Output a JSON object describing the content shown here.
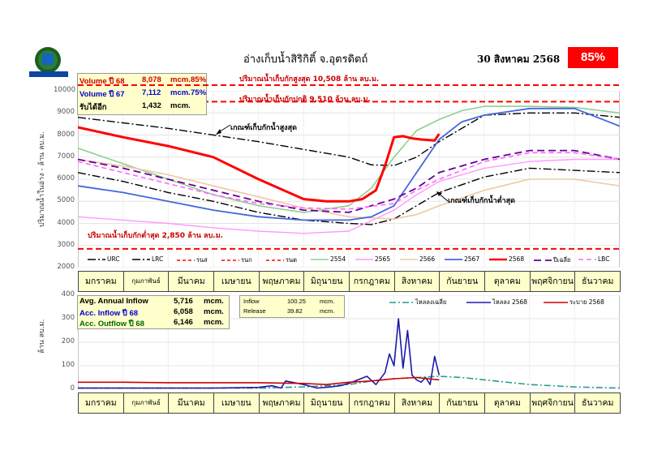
{
  "header": {
    "title": "อ่างเก็บน้ำสิริกิติ์ จ.อุตรดิตถ์",
    "date": "30 สิงหาคม 2568",
    "percent": "85%",
    "logo_text": "กรมชลประทาน"
  },
  "colors": {
    "accent_red": "#ff0000",
    "info_bg": "#ffffcc",
    "plot_bg": "#ffffff"
  },
  "info_top": {
    "rows": [
      {
        "label": "Volume ปี 68",
        "value": "8,078",
        "unit": "mcm.",
        "pct": "85%",
        "color": "#cc0000"
      },
      {
        "label": "Volume ปี 67",
        "value": "7,112",
        "unit": "mcm.",
        "pct": "75%",
        "color": "#0000cc"
      },
      {
        "label": "รับได้อีก",
        "value": "1,432",
        "unit": "mcm.",
        "pct": "",
        "color": "#000000"
      }
    ]
  },
  "info_bottom": {
    "rows": [
      {
        "label": "Avg. Annual Inflow",
        "value": "5,716",
        "unit": "mcm.",
        "color": "#000000"
      },
      {
        "label": "Acc. Inflow  ปี 68",
        "value": "6,058",
        "unit": "mcm.",
        "color": "#0000cc"
      },
      {
        "label": "Acc. Outflow  ปี 68",
        "value": "6,146",
        "unit": "mcm.",
        "color": "#006600"
      }
    ]
  },
  "info_flow": {
    "inflow_label": "Inflow",
    "inflow_value": "100.25",
    "inflow_unit": "mcm.",
    "release_label": "Release",
    "release_value": "39.82",
    "release_unit": "mcm."
  },
  "months": [
    "มกราคม",
    "กุมภาพันธ์",
    "มีนาคม",
    "เมษายน",
    "พฤษภาคม",
    "มิถุนายน",
    "กรกฎาคม",
    "สิงหาคม",
    "กันยายน",
    "ตุลาคม",
    "พฤศจิกายน",
    "ธันวาคม"
  ],
  "notes": {
    "max_storage": "ปริมาณน้ำเก็บกักสูงสุด 10,508 ล้าน ลบ.ม.",
    "normal_storage": "ปริมาณน้ำเก็บกักปกติ 9,510 ล้าน ลบ.ม.",
    "min_storage": "ปริมาณน้ำเก็บกักต่ำสุด 2,850 ล้าน ลบ.ม.",
    "urc_label": "เกณฑ์เก็บกักน้ำสูงสุด",
    "lrc_label": "เกณฑ์เก็บกักน้ำต่ำสุด"
  },
  "chart_data": [
    {
      "type": "line",
      "ylabel": "ปริมาณน้ำในอ่าง - ล้าน ลบ.ม.",
      "ylim": [
        2000,
        10000
      ],
      "yticks": [
        2000,
        3000,
        4000,
        5000,
        6000,
        7000,
        8000,
        9000,
        10000
      ],
      "x_unit": "month index (0 = start of Jan, 12 = end of Dec)",
      "legend": [
        "URC",
        "LRC",
        "รนส",
        "รนก",
        "รนต",
        "2554",
        "2565",
        "2566",
        "2567",
        "2568",
        "ปีเฉลี่ย",
        "LBC"
      ],
      "legend_placement": "bottom",
      "hlines": [
        {
          "name": "รนส",
          "y": 10508,
          "color": "#ff0000"
        },
        {
          "name": "รนก",
          "y": 9510,
          "color": "#ff0000"
        },
        {
          "name": "รนต",
          "y": 2850,
          "color": "#ff0000"
        }
      ],
      "series": [
        {
          "name": "URC",
          "color": "#000000",
          "dash": "10,3,2,3",
          "width": 1.4,
          "x": [
            0,
            2,
            4,
            5,
            6,
            6.5,
            7,
            7.5,
            8,
            9,
            10,
            11,
            12
          ],
          "y": [
            8800,
            8300,
            7700,
            7350,
            7000,
            6650,
            6620,
            7000,
            7700,
            8900,
            9000,
            9000,
            8800
          ]
        },
        {
          "name": "LRC",
          "color": "#000000",
          "dash": "10,3,2,3",
          "width": 1.4,
          "x": [
            0,
            1,
            2,
            3,
            4,
            5,
            6,
            6.5,
            7,
            7.5,
            8,
            9,
            10,
            11,
            12
          ],
          "y": [
            6300,
            5900,
            5400,
            5000,
            4500,
            4150,
            4000,
            3950,
            4200,
            4800,
            5400,
            6100,
            6500,
            6400,
            6300
          ]
        },
        {
          "name": "2554",
          "color": "#8fcf8f",
          "dash": "",
          "width": 1.6,
          "x": [
            0,
            1,
            2,
            3,
            4,
            5,
            6,
            6.5,
            7,
            7.5,
            8,
            8.5,
            9,
            10,
            11,
            12
          ],
          "y": [
            7400,
            6700,
            6000,
            5300,
            4800,
            4500,
            4800,
            5600,
            7000,
            8200,
            8700,
            9100,
            9300,
            9300,
            9250,
            9000
          ]
        },
        {
          "name": "2565",
          "color": "#ff99ff",
          "dash": "",
          "width": 1.4,
          "x": [
            0,
            1,
            2,
            3,
            4,
            5,
            6,
            7,
            7.5,
            8,
            9,
            10,
            11,
            12
          ],
          "y": [
            4300,
            4150,
            4000,
            3800,
            3650,
            3550,
            3650,
            4600,
            5300,
            5900,
            6500,
            6800,
            6900,
            6900
          ]
        },
        {
          "name": "2566",
          "color": "#f0c8a0",
          "dash": "",
          "width": 1.6,
          "x": [
            0,
            1,
            2,
            3,
            4,
            5,
            6,
            7,
            7.5,
            8,
            9,
            10,
            11,
            12
          ],
          "y": [
            6900,
            6600,
            6200,
            5700,
            5200,
            4700,
            4300,
            4200,
            4400,
            4800,
            5500,
            6000,
            6000,
            5700
          ]
        },
        {
          "name": "2567",
          "color": "#4466dd",
          "dash": "",
          "width": 1.8,
          "x": [
            0,
            1,
            2,
            3,
            4,
            5,
            6,
            6.5,
            7,
            7.5,
            8,
            8.5,
            9,
            10,
            11,
            12
          ],
          "y": [
            5700,
            5400,
            5000,
            4600,
            4300,
            4150,
            4150,
            4300,
            4800,
            6300,
            7800,
            8600,
            8900,
            9200,
            9200,
            8400
          ]
        },
        {
          "name": "2568",
          "color": "#ff0000",
          "dash": "",
          "width": 3,
          "x": [
            0,
            1,
            2,
            3,
            4,
            5,
            5.5,
            6,
            6.3,
            6.6,
            6.8,
            7,
            7.2,
            7.4,
            7.6,
            7.9,
            8
          ],
          "y": [
            8350,
            7900,
            7500,
            7000,
            6000,
            5100,
            5000,
            5000,
            5100,
            5500,
            6600,
            7900,
            7950,
            7850,
            7800,
            7750,
            8050
          ]
        },
        {
          "name": "ปีเฉลี่ย",
          "color": "#660099",
          "dash": "9,5",
          "width": 1.8,
          "x": [
            0,
            1,
            2,
            3,
            4,
            5,
            6,
            7,
            7.5,
            8,
            9,
            10,
            11,
            12
          ],
          "y": [
            6900,
            6500,
            6000,
            5500,
            5000,
            4600,
            4500,
            5100,
            5600,
            6300,
            6900,
            7300,
            7300,
            6900
          ]
        },
        {
          "name": "LBC",
          "color": "#ff66ff",
          "dash": "6,4",
          "width": 1.6,
          "x": [
            0,
            1,
            2,
            3,
            4,
            5,
            6,
            7,
            7.5,
            8,
            9,
            10,
            11,
            12
          ],
          "y": [
            6800,
            6300,
            5800,
            5300,
            4900,
            4700,
            4650,
            4900,
            5500,
            6000,
            6800,
            7200,
            7200,
            6900
          ]
        }
      ]
    },
    {
      "type": "line",
      "ylabel": "ล้าน ลบ.ม.",
      "ylim": [
        0,
        400
      ],
      "yticks": [
        0,
        100,
        200,
        300,
        400
      ],
      "x_unit": "month index (0 = start of Jan, 12 = end of Dec)",
      "legend": [
        "ไหลลงเฉลี่ย",
        "ไหลลง 2568",
        "ระบาย 2568"
      ],
      "legend_placement": "top-right",
      "series": [
        {
          "name": "ไหลลงเฉลี่ย",
          "color": "#2a9d8f",
          "dash": "8,3,2,3",
          "width": 1.6,
          "x": [
            0,
            1,
            2,
            3,
            4,
            5,
            5.5,
            6,
            6.5,
            7,
            7.5,
            8,
            8.5,
            9,
            10,
            11,
            12
          ],
          "y": [
            5,
            5,
            5,
            5,
            5,
            10,
            15,
            20,
            35,
            45,
            50,
            55,
            50,
            40,
            20,
            10,
            5
          ]
        },
        {
          "name": "ไหลลง 2568",
          "color": "#1a1aaa",
          "dash": "",
          "width": 1.6,
          "x": [
            0,
            1,
            2,
            3,
            4,
            4.3,
            4.5,
            4.6,
            5,
            5.3,
            5.6,
            5.8,
            6,
            6.2,
            6.4,
            6.6,
            6.8,
            6.9,
            7,
            7.1,
            7.2,
            7.3,
            7.4,
            7.5,
            7.6,
            7.7,
            7.8,
            7.9,
            8
          ],
          "y": [
            5,
            5,
            5,
            5,
            8,
            15,
            5,
            35,
            20,
            5,
            10,
            15,
            25,
            40,
            55,
            20,
            70,
            150,
            100,
            300,
            90,
            250,
            60,
            40,
            30,
            50,
            20,
            140,
            60
          ]
        },
        {
          "name": "ระบาย 2568",
          "color": "#cc0000",
          "dash": "",
          "width": 1.6,
          "x": [
            0,
            1,
            2,
            3,
            4,
            5,
            5.5,
            6,
            6.5,
            7,
            7.5,
            8
          ],
          "y": [
            30,
            30,
            28,
            28,
            28,
            25,
            20,
            30,
            35,
            45,
            50,
            40
          ]
        }
      ]
    }
  ]
}
